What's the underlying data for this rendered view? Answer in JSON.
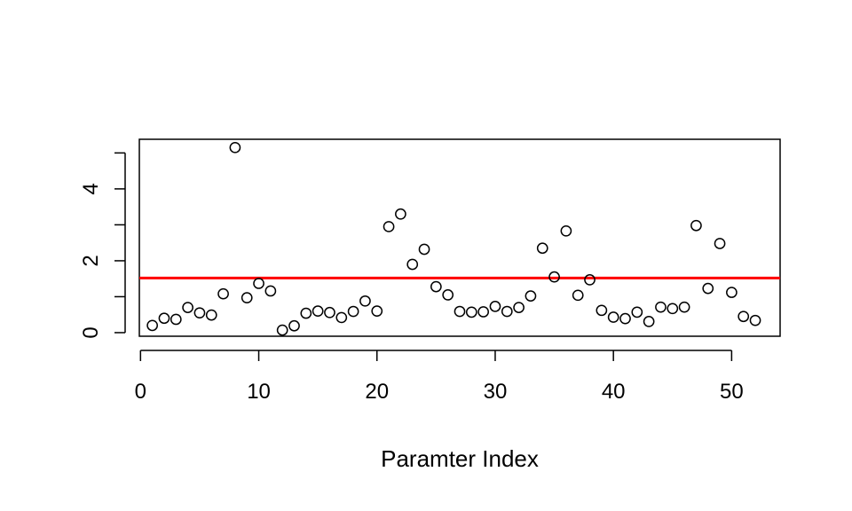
{
  "chart_data": {
    "type": "scatter",
    "xlabel": "Paramter Index",
    "ylabel": "",
    "x_ticks": [
      0,
      10,
      20,
      30,
      40,
      50
    ],
    "y_ticks_labeled": [
      0,
      2,
      4
    ],
    "y_ticks_minor": [
      1,
      3,
      5
    ],
    "xlim": [
      -0.1,
      54.1
    ],
    "ylim": [
      -0.1,
      5.38
    ],
    "grid": false,
    "point_color": "#000000",
    "threshold": {
      "y": 1.52,
      "color": "#ff0000"
    },
    "points": [
      [
        1,
        0.2
      ],
      [
        2,
        0.4
      ],
      [
        3,
        0.37
      ],
      [
        4,
        0.7
      ],
      [
        5,
        0.55
      ],
      [
        6,
        0.49
      ],
      [
        7,
        1.08
      ],
      [
        8,
        5.15
      ],
      [
        9,
        0.97
      ],
      [
        10,
        1.37
      ],
      [
        11,
        1.16
      ],
      [
        12,
        0.07
      ],
      [
        13,
        0.19
      ],
      [
        14,
        0.54
      ],
      [
        15,
        0.6
      ],
      [
        16,
        0.56
      ],
      [
        17,
        0.42
      ],
      [
        18,
        0.59
      ],
      [
        19,
        0.88
      ],
      [
        20,
        0.6
      ],
      [
        21,
        2.95
      ],
      [
        22,
        3.3
      ],
      [
        23,
        1.9
      ],
      [
        24,
        2.32
      ],
      [
        25,
        1.28
      ],
      [
        26,
        1.05
      ],
      [
        27,
        0.59
      ],
      [
        28,
        0.57
      ],
      [
        29,
        0.58
      ],
      [
        30,
        0.73
      ],
      [
        31,
        0.59
      ],
      [
        32,
        0.7
      ],
      [
        33,
        1.02
      ],
      [
        34,
        2.35
      ],
      [
        35,
        1.55
      ],
      [
        36,
        2.83
      ],
      [
        37,
        1.04
      ],
      [
        38,
        1.47
      ],
      [
        39,
        0.62
      ],
      [
        40,
        0.43
      ],
      [
        41,
        0.39
      ],
      [
        42,
        0.57
      ],
      [
        43,
        0.31
      ],
      [
        44,
        0.71
      ],
      [
        45,
        0.67
      ],
      [
        46,
        0.71
      ],
      [
        47,
        2.98
      ],
      [
        48,
        1.23
      ],
      [
        49,
        2.48
      ],
      [
        50,
        1.12
      ],
      [
        51,
        0.45
      ],
      [
        52,
        0.34
      ]
    ]
  }
}
